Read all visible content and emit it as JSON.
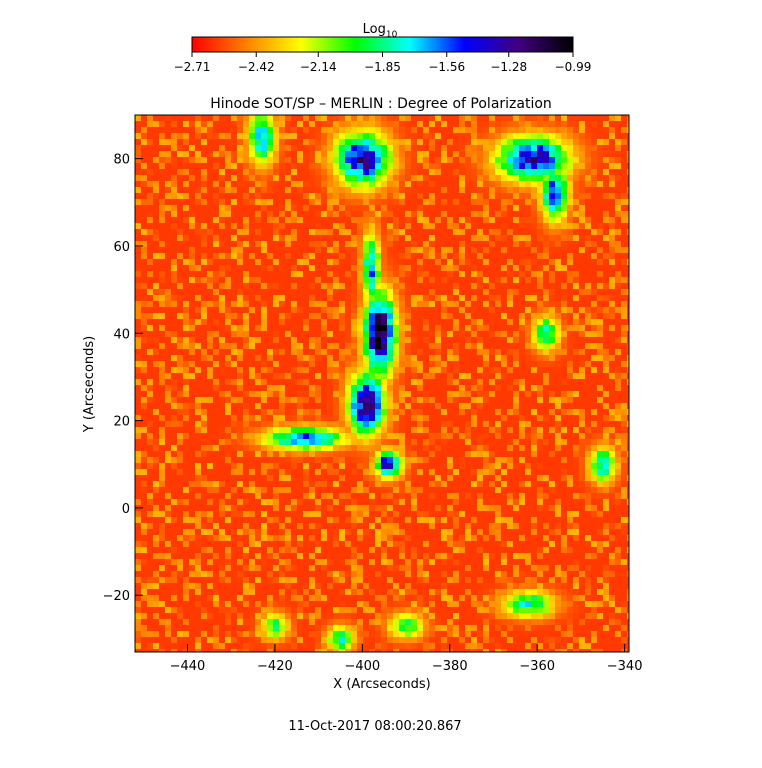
{
  "chart_data": {
    "type": "heatmap",
    "title": "Hinode SOT/SP – MERLIN : Degree of Polarization",
    "xlabel": "X (Arcseconds)",
    "ylabel": "Y (Arcseconds)",
    "xlim": [
      -452,
      -339
    ],
    "ylim": [
      -33,
      90
    ],
    "x_ticks": [
      -440,
      -420,
      -400,
      -380,
      -360,
      -340
    ],
    "x_tick_labels": [
      "−440",
      "−420",
      "−400",
      "−380",
      "−360",
      "−340"
    ],
    "y_ticks": [
      -20,
      0,
      20,
      40,
      60,
      80
    ],
    "y_tick_labels": [
      "−20",
      "0",
      "20",
      "40",
      "60",
      "80"
    ],
    "colorbar": {
      "title_base": "Log",
      "title_sub": "10",
      "ticks": [
        -2.71,
        -2.42,
        -2.14,
        -1.85,
        -1.56,
        -1.28,
        -0.99
      ],
      "tick_labels": [
        "−2.71",
        "−2.42",
        "−2.14",
        "−1.85",
        "−1.56",
        "−1.28",
        "−0.99"
      ],
      "colormap_stops": [
        "#ff0000",
        "#ff8000",
        "#ffff00",
        "#00ff00",
        "#00ffff",
        "#0000ff",
        "#400080",
        "#000000"
      ]
    },
    "background_level": -2.6,
    "features": [
      {
        "x": -396,
        "y": 40,
        "peak": -1.0,
        "rx": 3.5,
        "ry": 9
      },
      {
        "x": -399,
        "y": 24,
        "peak": -1.15,
        "rx": 4,
        "ry": 7
      },
      {
        "x": -394,
        "y": 10,
        "peak": -1.3,
        "rx": 3,
        "ry": 3
      },
      {
        "x": -398,
        "y": 55,
        "peak": -1.6,
        "rx": 2,
        "ry": 8
      },
      {
        "x": -400,
        "y": 80,
        "peak": -1.25,
        "rx": 6,
        "ry": 6
      },
      {
        "x": -413,
        "y": 16,
        "peak": -1.5,
        "rx": 9,
        "ry": 2.5
      },
      {
        "x": -361,
        "y": 80,
        "peak": -1.3,
        "rx": 8,
        "ry": 5
      },
      {
        "x": -356,
        "y": 72,
        "peak": -1.45,
        "rx": 3,
        "ry": 6
      },
      {
        "x": -423,
        "y": 85,
        "peak": -1.6,
        "rx": 3,
        "ry": 6
      },
      {
        "x": -358,
        "y": 40,
        "peak": -1.8,
        "rx": 3,
        "ry": 4
      },
      {
        "x": -345,
        "y": 10,
        "peak": -1.7,
        "rx": 3,
        "ry": 4
      },
      {
        "x": -362,
        "y": -22,
        "peak": -1.8,
        "rx": 6,
        "ry": 3
      },
      {
        "x": -420,
        "y": -27,
        "peak": -1.9,
        "rx": 3,
        "ry": 3
      },
      {
        "x": -405,
        "y": -30,
        "peak": -1.8,
        "rx": 3,
        "ry": 3
      },
      {
        "x": -390,
        "y": -27,
        "peak": -1.9,
        "rx": 4,
        "ry": 3
      }
    ]
  },
  "timestamp": "11-Oct-2017 08:00:20.867"
}
